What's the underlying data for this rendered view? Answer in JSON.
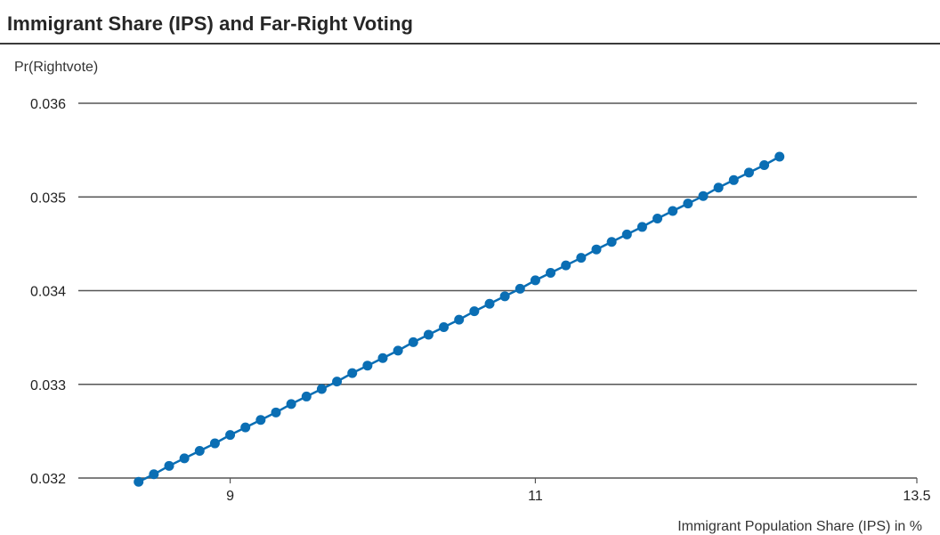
{
  "title": "Immigrant Share (IPS) and Far-Right Voting",
  "chart_data": {
    "type": "line",
    "title": "Immigrant Share (IPS) and Far-Right Voting",
    "xlabel": "Immigrant Population Share (IPS) in %",
    "ylabel": "Pr(Rightvote)",
    "xlim": [
      7.97,
      13.5
    ],
    "ylim": [
      0.032,
      0.036
    ],
    "x_ticks": [
      9,
      11,
      13.5
    ],
    "x_tick_labels": [
      "9",
      "11",
      "13.5"
    ],
    "y_ticks": [
      0.032,
      0.033,
      0.034,
      0.035,
      0.036
    ],
    "y_tick_labels": [
      "0.032",
      "0.033",
      "0.034",
      "0.035",
      "0.036"
    ],
    "grid": "horizontal",
    "legend": "none",
    "colors": {
      "series": "#0a6eb4",
      "grid": "#555555"
    },
    "series": [
      {
        "x": [
          8.4,
          8.5,
          8.6,
          8.7,
          8.8,
          8.9,
          9.0,
          9.1,
          9.2,
          9.3,
          9.4,
          9.5,
          9.6,
          9.7,
          9.8,
          9.9,
          10.0,
          10.1,
          10.2,
          10.3,
          10.4,
          10.5,
          10.6,
          10.7,
          10.8,
          10.9,
          11.0,
          11.1,
          11.2,
          11.3,
          11.4,
          11.5,
          11.6,
          11.7,
          11.8,
          11.9,
          12.0,
          12.1,
          12.2,
          12.3,
          12.4,
          12.5,
          12.6
        ],
        "y": [
          0.03196,
          0.03204,
          0.03213,
          0.03221,
          0.03229,
          0.03237,
          0.03246,
          0.03254,
          0.03262,
          0.0327,
          0.03279,
          0.03287,
          0.03295,
          0.03303,
          0.03312,
          0.0332,
          0.03328,
          0.03336,
          0.03345,
          0.03353,
          0.03361,
          0.03369,
          0.03378,
          0.03386,
          0.03394,
          0.03402,
          0.03411,
          0.03419,
          0.03427,
          0.03435,
          0.03444,
          0.03452,
          0.0346,
          0.03468,
          0.03477,
          0.03485,
          0.03493,
          0.03501,
          0.0351,
          0.03518,
          0.03526,
          0.03534,
          0.03543
        ]
      }
    ]
  }
}
